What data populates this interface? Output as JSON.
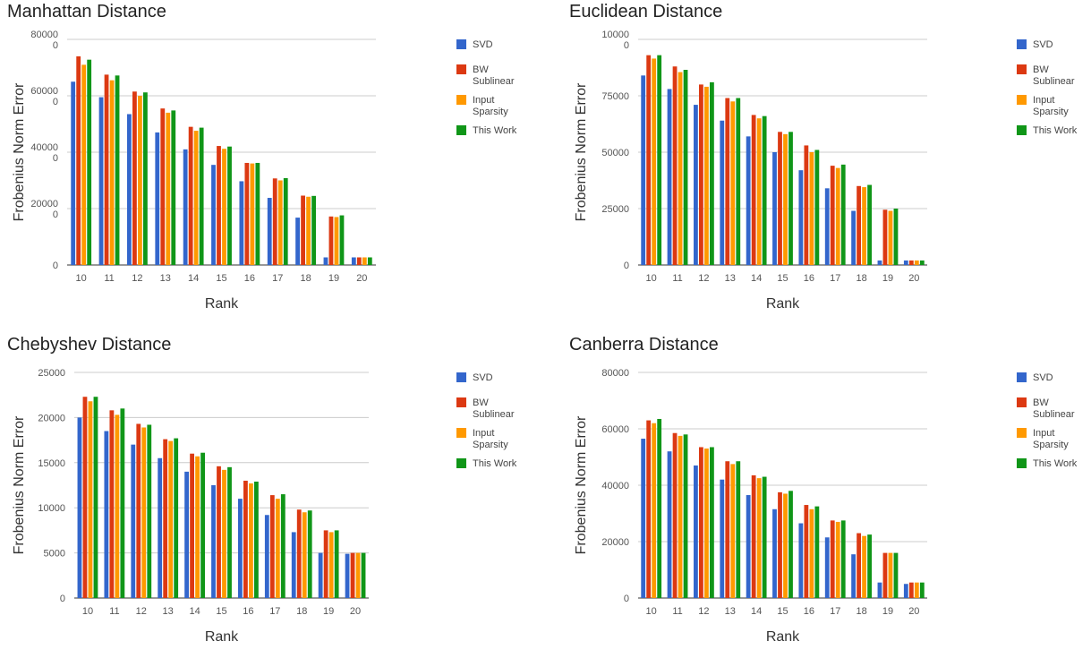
{
  "legend_labels": {
    "SVD": [
      "SVD"
    ],
    "BW Sublinear": [
      "BW",
      "Sublinear"
    ],
    "Input Sparsity": [
      "Input",
      "Sparsity"
    ],
    "This Work": [
      "This Work"
    ]
  },
  "series_colors": {
    "SVD": "#3366cc",
    "BW Sublinear": "#dc3912",
    "Input Sparsity": "#ff9900",
    "This Work": "#109618"
  },
  "chart_data": [
    {
      "type": "bar",
      "title": "Manhattan Distance",
      "xlabel": "Rank",
      "ylabel": "Frobenius Norm Error",
      "categories": [
        "10",
        "11",
        "12",
        "13",
        "14",
        "15",
        "16",
        "17",
        "18",
        "19",
        "20"
      ],
      "ylim": [
        0,
        800000
      ],
      "yticks": [
        0,
        200000,
        400000,
        600000,
        800000
      ],
      "ytick_labels": [
        [
          "0"
        ],
        [
          "20000",
          "0"
        ],
        [
          "40000",
          "0"
        ],
        [
          "60000",
          "0"
        ],
        [
          "80000",
          "0"
        ]
      ],
      "grid": true,
      "legend_position": "right",
      "series": [
        {
          "name": "SVD",
          "values": [
            650000,
            595000,
            535000,
            470000,
            410000,
            355000,
            297000,
            238000,
            168000,
            27000,
            27000
          ]
        },
        {
          "name": "BW Sublinear",
          "values": [
            740000,
            675000,
            615000,
            555000,
            490000,
            422000,
            362000,
            307000,
            246000,
            172000,
            27000
          ]
        },
        {
          "name": "Input Sparsity",
          "values": [
            710000,
            655000,
            600000,
            540000,
            476000,
            412000,
            360000,
            300000,
            242000,
            170000,
            27000
          ]
        },
        {
          "name": "This Work",
          "values": [
            728000,
            672000,
            612000,
            548000,
            487000,
            420000,
            362000,
            308000,
            245000,
            176000,
            27000
          ]
        }
      ]
    },
    {
      "type": "bar",
      "title": "Euclidean Distance",
      "xlabel": "Rank",
      "ylabel": "Frobenius Norm Error",
      "categories": [
        "10",
        "11",
        "12",
        "13",
        "14",
        "15",
        "16",
        "17",
        "18",
        "19",
        "20"
      ],
      "ylim": [
        0,
        100000
      ],
      "yticks": [
        0,
        25000,
        50000,
        75000,
        100000
      ],
      "ytick_labels": [
        [
          "0"
        ],
        [
          "25000"
        ],
        [
          "50000"
        ],
        [
          "75000"
        ],
        [
          "10000",
          "0"
        ]
      ],
      "grid": true,
      "legend_position": "right",
      "series": [
        {
          "name": "SVD",
          "values": [
            84000,
            78000,
            71000,
            64000,
            57000,
            50000,
            42000,
            34000,
            24000,
            2000,
            2000
          ]
        },
        {
          "name": "BW Sublinear",
          "values": [
            93000,
            88000,
            80000,
            74000,
            66500,
            59000,
            53000,
            44000,
            35000,
            24500,
            2000
          ]
        },
        {
          "name": "Input Sparsity",
          "values": [
            91500,
            85500,
            79000,
            72500,
            65000,
            58000,
            50000,
            43000,
            34500,
            24000,
            2000
          ]
        },
        {
          "name": "This Work",
          "values": [
            93000,
            86500,
            81000,
            74000,
            66000,
            59000,
            51000,
            44500,
            35500,
            25000,
            2000
          ]
        }
      ]
    },
    {
      "type": "bar",
      "title": "Chebyshev Distance",
      "xlabel": "Rank",
      "ylabel": "Frobenius Norm Error",
      "categories": [
        "10",
        "11",
        "12",
        "13",
        "14",
        "15",
        "16",
        "17",
        "18",
        "19",
        "20"
      ],
      "ylim": [
        0,
        25000
      ],
      "yticks": [
        0,
        5000,
        10000,
        15000,
        20000,
        25000
      ],
      "ytick_labels": [
        [
          "0"
        ],
        [
          "5000"
        ],
        [
          "10000"
        ],
        [
          "15000"
        ],
        [
          "20000"
        ],
        [
          "25000"
        ]
      ],
      "grid": true,
      "legend_position": "right",
      "series": [
        {
          "name": "SVD",
          "values": [
            20000,
            18500,
            17000,
            15500,
            14000,
            12500,
            11000,
            9200,
            7300,
            5000,
            4900
          ]
        },
        {
          "name": "BW Sublinear",
          "values": [
            22300,
            20800,
            19300,
            17600,
            16000,
            14600,
            13000,
            11400,
            9800,
            7500,
            5000
          ]
        },
        {
          "name": "Input Sparsity",
          "values": [
            21800,
            20300,
            18900,
            17400,
            15700,
            14200,
            12700,
            11000,
            9500,
            7300,
            5000
          ]
        },
        {
          "name": "This Work",
          "values": [
            22300,
            21000,
            19200,
            17700,
            16100,
            14500,
            12900,
            11500,
            9700,
            7500,
            5000
          ]
        }
      ]
    },
    {
      "type": "bar",
      "title": "Canberra Distance",
      "xlabel": "Rank",
      "ylabel": "Frobenius Norm Error",
      "categories": [
        "10",
        "11",
        "12",
        "13",
        "14",
        "15",
        "16",
        "17",
        "18",
        "19",
        "20"
      ],
      "ylim": [
        0,
        80000
      ],
      "yticks": [
        0,
        20000,
        40000,
        60000,
        80000
      ],
      "ytick_labels": [
        [
          "0"
        ],
        [
          "20000"
        ],
        [
          "40000"
        ],
        [
          "60000"
        ],
        [
          "80000"
        ]
      ],
      "grid": true,
      "legend_position": "right",
      "series": [
        {
          "name": "SVD",
          "values": [
            56500,
            52000,
            47000,
            42000,
            36500,
            31500,
            26500,
            21500,
            15500,
            5500,
            5000
          ]
        },
        {
          "name": "BW Sublinear",
          "values": [
            63000,
            58500,
            53500,
            48500,
            43500,
            37500,
            33000,
            27500,
            23000,
            16000,
            5500
          ]
        },
        {
          "name": "Input Sparsity",
          "values": [
            62000,
            57500,
            53000,
            47500,
            42500,
            37000,
            31500,
            27000,
            22000,
            16000,
            5500
          ]
        },
        {
          "name": "This Work",
          "values": [
            63500,
            58000,
            53500,
            48500,
            43000,
            38000,
            32500,
            27500,
            22500,
            16000,
            5500
          ]
        }
      ]
    }
  ]
}
